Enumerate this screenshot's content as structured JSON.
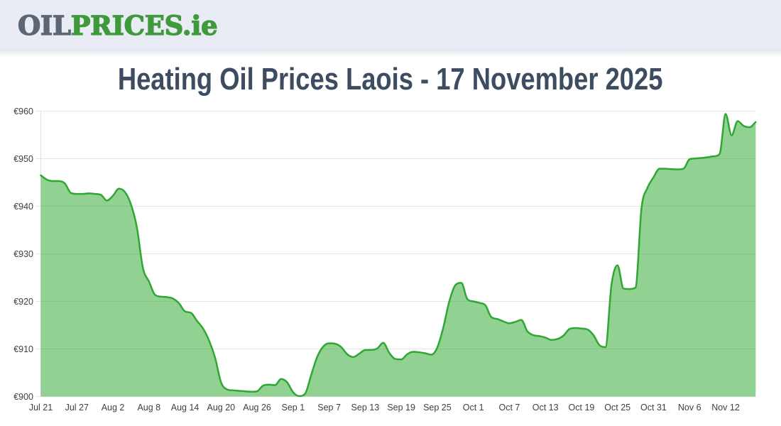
{
  "header": {
    "logo_part1": "OIL",
    "logo_part2": "PRICES.ie"
  },
  "title": "Heating Oil Prices Laois - 17 November 2025",
  "chart_data": {
    "type": "area",
    "title": "Heating Oil Prices Laois - 17 November 2025",
    "x_tick_labels": [
      "Jul 21",
      "Jul 27",
      "Aug 2",
      "Aug 8",
      "Aug 14",
      "Aug 20",
      "Aug 26",
      "Sep 1",
      "Sep 7",
      "Sep 13",
      "Sep 19",
      "Sep 25",
      "Oct 1",
      "Oct 7",
      "Oct 13",
      "Oct 19",
      "Oct 25",
      "Oct 31",
      "Nov 6",
      "Nov 12"
    ],
    "x_tick_day_offsets": [
      0,
      6,
      12,
      18,
      24,
      30,
      36,
      42,
      48,
      54,
      60,
      66,
      72,
      78,
      84,
      90,
      96,
      102,
      108,
      114
    ],
    "y_ticks": [
      900,
      910,
      920,
      930,
      940,
      950,
      960
    ],
    "y_tick_prefix": "€",
    "ylim": [
      900,
      960
    ],
    "grid": true,
    "legend": "off",
    "series": [
      {
        "name": "Heating Oil Price",
        "start_label": "Jul 21",
        "end_label": "Nov 17",
        "cadence_days": 1,
        "values": [
          946.5,
          945.6,
          945.3,
          945.3,
          944.8,
          942.8,
          942.6,
          942.6,
          942.7,
          942.6,
          942.4,
          941.2,
          942.2,
          943.7,
          943.0,
          940.4,
          935.5,
          927.0,
          924.2,
          921.4,
          921.0,
          920.9,
          920.6,
          919.6,
          917.9,
          917.6,
          915.9,
          914.3,
          911.8,
          908.2,
          903.0,
          901.5,
          901.3,
          901.2,
          901.1,
          901.0,
          901.1,
          902.3,
          902.5,
          902.4,
          903.7,
          903.0,
          900.9,
          900.1,
          900.6,
          904.5,
          908.3,
          910.5,
          911.2,
          911.1,
          910.4,
          908.9,
          908.3,
          909.0,
          909.8,
          909.8,
          910.1,
          911.3,
          909.2,
          907.9,
          907.8,
          908.9,
          909.4,
          909.3,
          909.1,
          908.8,
          910.3,
          914.5,
          920.0,
          923.4,
          923.9,
          920.5,
          920.0,
          919.7,
          919.2,
          916.7,
          916.3,
          915.8,
          915.4,
          915.7,
          916.1,
          913.7,
          912.9,
          912.7,
          912.4,
          911.9,
          912.1,
          912.8,
          914.2,
          914.4,
          914.3,
          914.1,
          912.9,
          910.8,
          910.4,
          923.5,
          927.6,
          922.7,
          922.6,
          922.9,
          939.6,
          943.9,
          946.1,
          947.9,
          947.9,
          947.8,
          947.75,
          947.9,
          949.9,
          950.05,
          950.15,
          950.3,
          950.5,
          951.0,
          959.4,
          954.9,
          957.9,
          956.9,
          956.6,
          957.7
        ]
      }
    ],
    "colors": {
      "line": "#2fa733",
      "fill_rgba": "rgba(44,167,44,0.52)",
      "grid": "#e6e6e6",
      "axis_line": "#d9dde5",
      "tick_text": "#3f3f3f"
    }
  }
}
